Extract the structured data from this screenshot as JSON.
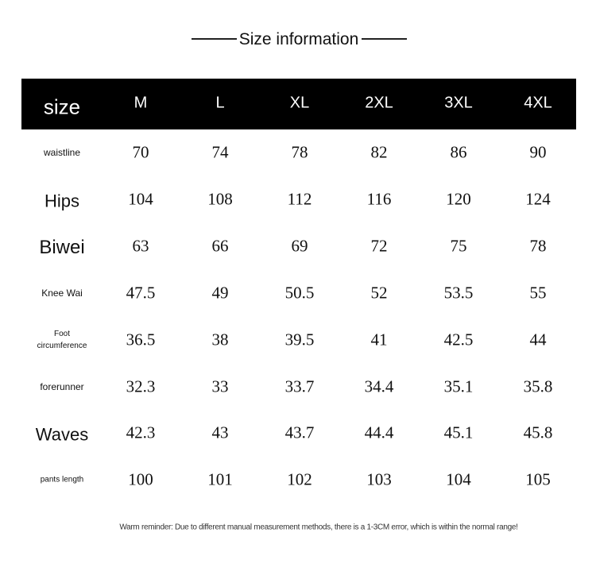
{
  "header": {
    "title": "Size information"
  },
  "table": {
    "columns": [
      "size",
      "M",
      "L",
      "XL",
      "2XL",
      "3XL",
      "4XL"
    ],
    "rows": [
      [
        "waistline",
        "70",
        "74",
        "78",
        "82",
        "86",
        "90"
      ],
      [
        "Hips",
        "104",
        "108",
        "112",
        "116",
        "120",
        "124"
      ],
      [
        "Biwei",
        "63",
        "66",
        "69",
        "72",
        "75",
        "78"
      ],
      [
        "Knee Wai",
        "47.5",
        "49",
        "50.5",
        "52",
        "53.5",
        "55"
      ],
      [
        "Foot circumference",
        "36.5",
        "38",
        "39.5",
        "41",
        "42.5",
        "44"
      ],
      [
        "forerunner",
        "32.3",
        "33",
        "33.7",
        "34.4",
        "35.1",
        "35.8"
      ],
      [
        "Waves",
        "42.3",
        "43",
        "43.7",
        "44.4",
        "45.1",
        "45.8"
      ],
      [
        "pants length",
        "100",
        "101",
        "102",
        "103",
        "104",
        "105"
      ]
    ]
  },
  "footer": {
    "reminder": "Warm reminder: Due to different manual measurement methods, there is a 1-3CM error, which is within the normal range!"
  }
}
